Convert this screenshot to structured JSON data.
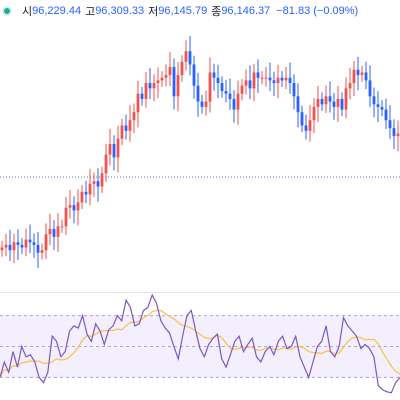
{
  "legend": {
    "open_label": "시",
    "open": "96,229.44",
    "high_label": "고",
    "high": "96,309.33",
    "low_label": "저",
    "low": "96,145.79",
    "close_label": "종",
    "close": "96,146.37",
    "change": "−81.83 (−0.09%)"
  },
  "colors": {
    "up": "#ef5350",
    "down": "#2962ff",
    "osc_line": "#7e57c2",
    "signal_line": "#f6c343",
    "band_fill": "#f3effc",
    "band_border": "#b39ddb",
    "ref_line": "#5b7bd6",
    "status_dot": "#22ab94"
  },
  "chart_data": {
    "type": "candlestick",
    "price_closes": [
      4.8,
      4.9,
      4.7,
      5.0,
      4.9,
      4.8,
      5.1,
      5.0,
      4.9,
      4.6,
      4.7,
      5.3,
      5.5,
      5.2,
      5.6,
      5.6,
      6.3,
      6.4,
      6.2,
      6.5,
      6.9,
      6.8,
      7.2,
      7.3,
      7.1,
      7.6,
      8.3,
      8.7,
      8.2,
      8.9,
      9.4,
      9.2,
      9.6,
      9.9,
      10.6,
      10.4,
      11.0,
      10.8,
      11.0,
      11.1,
      11.2,
      11.3,
      11.6,
      10.5,
      11.3,
      11.8,
      12.2,
      11.7,
      10.9,
      10.3,
      10.1,
      10.3,
      11.4,
      11.2,
      11.0,
      10.7,
      10.6,
      10.4,
      10.0,
      10.6,
      10.9,
      11.1,
      10.8,
      11.4,
      11.2,
      11.2,
      11.2,
      11.1,
      11.0,
      11.2,
      11.1,
      11.2,
      11.0,
      10.5,
      9.9,
      9.4,
      9.2,
      9.6,
      10.1,
      10.4,
      10.2,
      10.5,
      10.3,
      10.1,
      10.4,
      10.0,
      10.8,
      11.0,
      11.5,
      11.3,
      11.4,
      11.1,
      10.5,
      10.2,
      10.1,
      10.0,
      9.6,
      9.3,
      9.0,
      9.1
    ],
    "oscillator": [
      20,
      35,
      25,
      45,
      30,
      50,
      40,
      42,
      35,
      20,
      15,
      25,
      60,
      55,
      40,
      45,
      65,
      70,
      68,
      80,
      62,
      55,
      72,
      65,
      52,
      66,
      70,
      80,
      75,
      95,
      88,
      70,
      72,
      85,
      88,
      100,
      92,
      75,
      68,
      63,
      50,
      38,
      60,
      80,
      85,
      65,
      48,
      40,
      52,
      58,
      62,
      38,
      30,
      42,
      55,
      60,
      45,
      52,
      58,
      40,
      35,
      45,
      50,
      42,
      55,
      60,
      48,
      50,
      60,
      40,
      30,
      20,
      35,
      50,
      55,
      70,
      45,
      40,
      50,
      78,
      70,
      65,
      60,
      48,
      52,
      48,
      40,
      12,
      8,
      6,
      5,
      15,
      20
    ],
    "upper_band": 80,
    "lower_band": 20,
    "mid_band": 50,
    "osc_range": [
      0,
      100
    ]
  }
}
